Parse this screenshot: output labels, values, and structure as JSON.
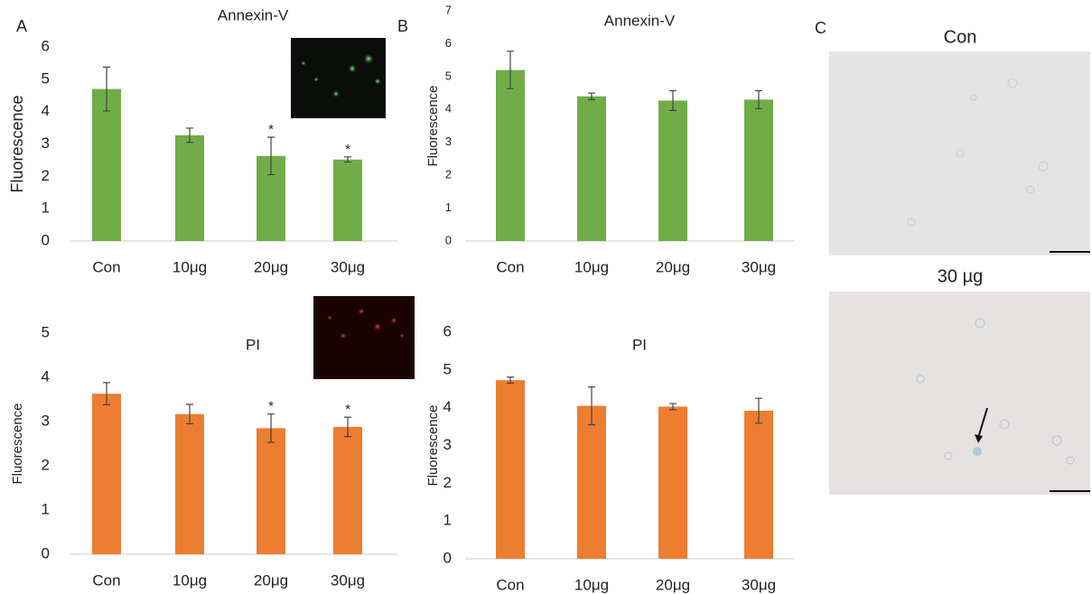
{
  "panel_labels": [
    "A",
    "B",
    "C"
  ],
  "chart_data": [
    {
      "type": "bar",
      "title": "Annexin-V",
      "y_label": "Fluorescence",
      "categories": [
        "Con",
        "10μg",
        "20μg",
        "30μg"
      ],
      "values": [
        4.7,
        3.27,
        2.63,
        2.52
      ],
      "errors": [
        0.68,
        0.22,
        0.58,
        0.08
      ],
      "significance": [
        null,
        null,
        "*",
        "*"
      ],
      "color": "#70ad47",
      "ylim": [
        0,
        6
      ],
      "yticks": [
        0,
        1,
        2,
        3,
        4,
        5,
        6
      ],
      "grid": false
    },
    {
      "type": "bar",
      "title": "Annexin-V",
      "y_label": "Fluorescence",
      "categories": [
        "Con",
        "10μg",
        "20μg",
        "30μg"
      ],
      "values": [
        5.2,
        4.4,
        4.27,
        4.3
      ],
      "errors": [
        0.57,
        0.1,
        0.3,
        0.27
      ],
      "significance": [
        null,
        null,
        null,
        null
      ],
      "color": "#70ad47",
      "ylim": [
        0,
        7
      ],
      "yticks": [
        0,
        1,
        2,
        3,
        4,
        5,
        6,
        7
      ],
      "grid": false
    },
    {
      "type": "bar",
      "title": "PI",
      "y_label": "Fluorescence",
      "categories": [
        "Con",
        "10μg",
        "20μg",
        "30μg"
      ],
      "values": [
        3.63,
        3.17,
        2.85,
        2.88
      ],
      "errors": [
        0.25,
        0.22,
        0.32,
        0.22
      ],
      "significance": [
        null,
        null,
        "*",
        "*"
      ],
      "color": "#ed7d31",
      "ylim": [
        0,
        5
      ],
      "yticks": [
        0,
        1,
        2,
        3,
        4,
        5
      ],
      "grid": false
    },
    {
      "type": "bar",
      "title": "PI",
      "y_label": "Fluorescence",
      "categories": [
        "Con",
        "10μg",
        "20μg",
        "30μg"
      ],
      "values": [
        4.73,
        4.05,
        4.03,
        3.92
      ],
      "errors": [
        0.08,
        0.5,
        0.08,
        0.33
      ],
      "significance": [
        null,
        null,
        null,
        null
      ],
      "color": "#ed7d31",
      "ylim": [
        0,
        6
      ],
      "yticks": [
        0,
        1,
        2,
        3,
        4,
        5,
        6
      ],
      "grid": false
    }
  ],
  "micrographs": {
    "titles": [
      "Con",
      "30 µg"
    ]
  }
}
